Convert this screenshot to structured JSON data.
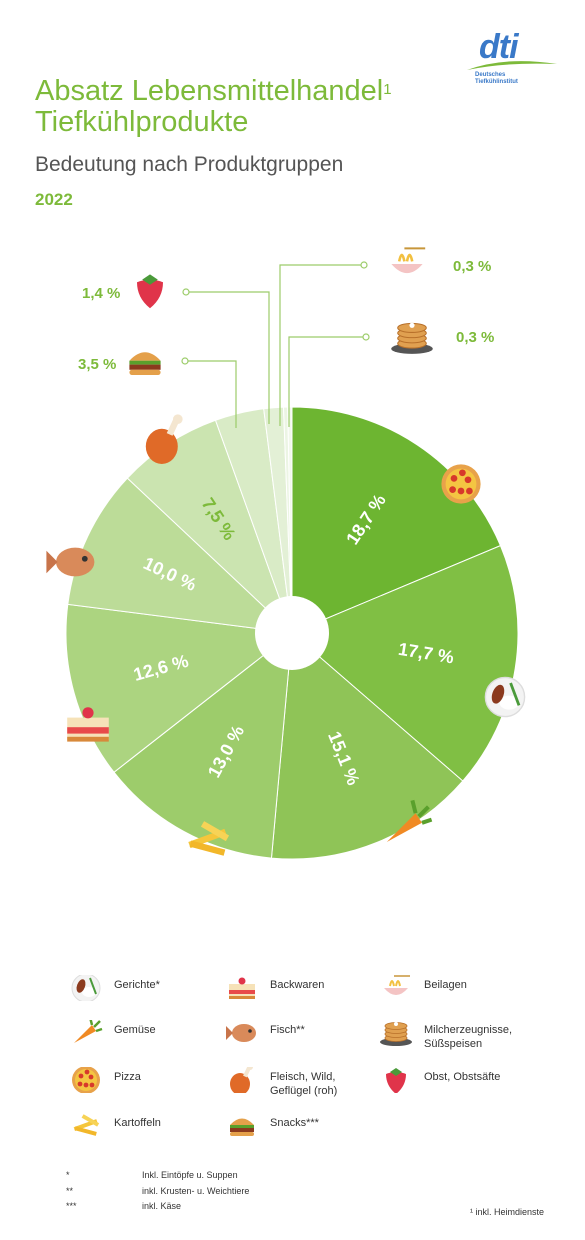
{
  "logo": {
    "text": "dti",
    "subline1": "Deutsches",
    "subline2": "Tiefkühlinstitut"
  },
  "title_main": "Absatz Lebensmittelhandel",
  "title_sup": "1",
  "title_second": "Tiefkühlprodukte",
  "subtitle": "Bedeutung nach Produktgruppen",
  "year": "2022",
  "colors": {
    "accent": "#7dba3a"
  },
  "chart_data": {
    "type": "pie",
    "title": "Absatz Lebensmittelhandel Tiefkühlprodukte",
    "subtitle": "Bedeutung nach Produktgruppen",
    "unit": "%",
    "slices": [
      {
        "name": "Pizza",
        "value": 18.7,
        "label": "18,7 %",
        "color": "#6db531",
        "icon": "pizza-icon"
      },
      {
        "name": "Gerichte*",
        "value": 17.7,
        "label": "17,7 %",
        "color": "#80bf44",
        "icon": "dish-icon"
      },
      {
        "name": "Gemüse",
        "value": 15.1,
        "label": "15,1 %",
        "color": "#8fc457",
        "icon": "carrot-icon"
      },
      {
        "name": "Kartoffeln",
        "value": 13.0,
        "label": "13,0 %",
        "color": "#9dcc6b",
        "icon": "fries-icon"
      },
      {
        "name": "Backwaren",
        "value": 12.6,
        "label": "12,6 %",
        "color": "#acd480",
        "icon": "cake-icon"
      },
      {
        "name": "Fisch**",
        "value": 10.0,
        "label": "10,0 %",
        "color": "#bcdc98",
        "icon": "fish-icon"
      },
      {
        "name": "Fleisch, Wild, Geflügel (roh)",
        "value": 7.5,
        "label": "7,5 %",
        "color": "#cbe4b0",
        "icon": "chicken-leg-icon"
      },
      {
        "name": "Snacks***",
        "value": 3.5,
        "label": "3,5 %",
        "color": "#d9ebc6",
        "icon": "burger-icon"
      },
      {
        "name": "Obst, Obstsäfte",
        "value": 1.4,
        "label": "1,4 %",
        "color": "#e3f0d6",
        "icon": "strawberry-icon"
      },
      {
        "name": "Beilagen",
        "value": 0.3,
        "label": "0,3 %",
        "color": "#ecf5e4",
        "icon": "noodles-icon"
      },
      {
        "name": "Milcherzeugnisse, Süßspeisen",
        "value": 0.3,
        "label": "0,3 %",
        "color": "#f2f8ec",
        "icon": "pancakes-icon"
      }
    ]
  },
  "legend": [
    {
      "label": "Gerichte*",
      "icon": "dish-icon"
    },
    {
      "label": "Gemüse",
      "icon": "carrot-icon"
    },
    {
      "label": "Pizza",
      "icon": "pizza-icon"
    },
    {
      "label": "Kartoffeln",
      "icon": "fries-icon"
    },
    {
      "label": "Backwaren",
      "icon": "cake-icon"
    },
    {
      "label": "Fisch**",
      "icon": "fish-icon"
    },
    {
      "label": "Fleisch, Wild,\nGeflügel (roh)",
      "icon": "chicken-leg-icon"
    },
    {
      "label": "Snacks***",
      "icon": "burger-icon"
    },
    {
      "label": "Beilagen",
      "icon": "noodles-icon"
    },
    {
      "label": "Milcherzeugnisse,\nSüßspeisen",
      "icon": "pancakes-icon"
    },
    {
      "label": "Obst, Obstsäfte",
      "icon": "strawberry-icon"
    }
  ],
  "footnotes": [
    {
      "mark": "*",
      "text": "Inkl. Eintöpfe u. Suppen"
    },
    {
      "mark": "**",
      "text": "inkl. Krusten- u. Weichtiere"
    },
    {
      "mark": "***",
      "text": "inkl. Käse"
    }
  ],
  "footnote_right": "¹ inkl. Heimdienste"
}
